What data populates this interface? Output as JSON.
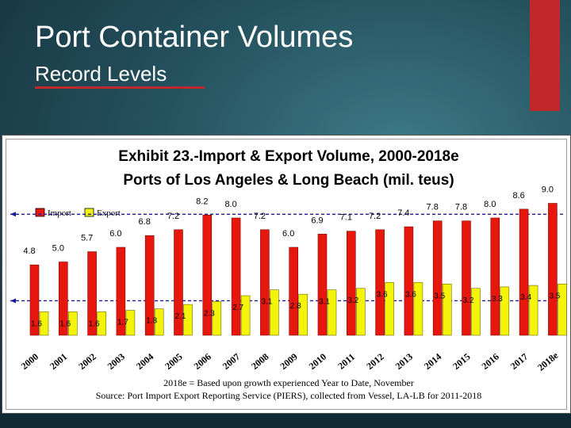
{
  "slide": {
    "title": "Port Container Volumes",
    "subtitle": "Record Levels"
  },
  "colors": {
    "import": "#e8170e",
    "export": "#f4f40a",
    "accent": "#c0282a",
    "dash": "#1a1a9a"
  },
  "chart_data": {
    "type": "bar",
    "title": "Exhibit 23.-Import & Export  Volume, 2000-2018e",
    "subtitle": "Ports of Los Angeles & Long Beach (mil. teus)",
    "categories": [
      "2000",
      "2001",
      "2002",
      "2003",
      "2004",
      "2005",
      "2006",
      "2007",
      "2008",
      "2009",
      "2010",
      "2011",
      "2012",
      "2013",
      "2014",
      "2015",
      "2016",
      "2017",
      "2018e"
    ],
    "series": [
      {
        "name": "Import",
        "values": [
          4.8,
          5.0,
          5.7,
          6.0,
          6.8,
          7.2,
          8.2,
          8.0,
          7.2,
          6.0,
          6.9,
          7.1,
          7.2,
          7.4,
          7.8,
          7.8,
          8.0,
          8.6,
          9.0
        ]
      },
      {
        "name": "Export",
        "values": [
          1.6,
          1.6,
          1.6,
          1.7,
          1.8,
          2.1,
          2.3,
          2.7,
          3.1,
          2.8,
          3.1,
          3.2,
          3.6,
          3.6,
          3.5,
          3.2,
          3.3,
          3.4,
          3.5
        ]
      }
    ],
    "legend": "top-left",
    "reference_lines": "dashed lines at the 2006 import and export levels",
    "footnote_1": "2018e = Based upon growth experienced Year to Date, November",
    "footnote_2": "Source:  Port Import Export Reporting Service (PIERS), collected from Vessel, LA-LB for 2011-2018"
  }
}
